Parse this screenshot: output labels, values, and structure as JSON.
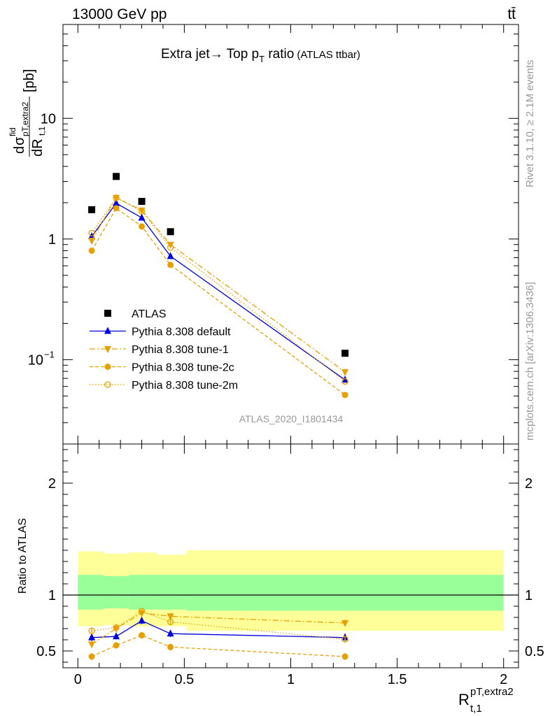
{
  "header": {
    "left": "13000 GeV pp",
    "right": "tt̄"
  },
  "side_labels": {
    "rivet": "Rivet 3.1.10, ≥ 2.1M events",
    "mcplots": "mcplots.cern.ch [arXiv:1306.3436]"
  },
  "analysis_id": "ATLAS_2020_I1801434",
  "colors": {
    "atlas": "#000000",
    "default": "#0000dd",
    "orange": "#e8a000",
    "band_inner": "#99ff99",
    "band_outer": "#ffff99"
  },
  "chart_data": [
    {
      "type": "scatter",
      "panel": "main",
      "title": "Extra jet→ Top p_T ratio",
      "title_parts": {
        "main": "Extra jet",
        "arrow": "→",
        "after": " Top p",
        "sub": "T",
        "ratio": " ratio",
        "note": "(ATLAS ttbar)"
      },
      "ylabel": "dσ^fid_{pT,extra2}/dR_{t,1} [pb]",
      "ylabel_parts": {
        "d_top": "d",
        "sigma": "σ",
        "sup": "fid",
        "sub": "pT,extra2",
        "bottom": "dR",
        "bottom_sub": "t,1",
        "unit": "[pb]"
      },
      "yscale": "log",
      "ylim": [
        0.02,
        60
      ],
      "xlim": [
        -0.07,
        2.07
      ],
      "y_ticks": [
        {
          "value": 0.1,
          "label": "10",
          "sup": "−1"
        },
        {
          "value": 1,
          "label": "1"
        },
        {
          "value": 10,
          "label": "10"
        }
      ],
      "legend_position": "lower-left",
      "x": [
        0.065,
        0.18,
        0.3,
        0.435,
        1.255
      ],
      "series": [
        {
          "name": "ATLAS",
          "marker": "square",
          "line": "none",
          "values": [
            1.75,
            3.3,
            2.05,
            1.15,
            0.113
          ]
        },
        {
          "name": "Pythia 8.308 default",
          "marker": "triangle-up",
          "line": "solid",
          "values": [
            1.05,
            1.98,
            1.5,
            0.72,
            0.068
          ]
        },
        {
          "name": "Pythia 8.308 tune-1",
          "marker": "triangle-down",
          "line": "dashdot",
          "values": [
            0.97,
            2.2,
            1.73,
            0.9,
            0.079
          ]
        },
        {
          "name": "Pythia 8.308 tune-2c",
          "marker": "circle",
          "line": "dashed",
          "values": [
            0.8,
            1.8,
            1.27,
            0.61,
            0.051
          ]
        },
        {
          "name": "Pythia 8.308 tune-2m",
          "marker": "circle-open",
          "line": "dotted",
          "values": [
            1.12,
            2.2,
            1.7,
            0.85,
            0.066
          ]
        }
      ]
    },
    {
      "type": "scatter",
      "panel": "ratio",
      "ylabel": "Ratio to ATLAS",
      "xlabel": "R^{pT,extra2}_{t,1}",
      "xlabel_parts": {
        "main": "R",
        "sup": "pT,extra2",
        "sub": "t,1"
      },
      "ylim": [
        0.35,
        2.35
      ],
      "xlim": [
        -0.07,
        2.07
      ],
      "y_ticks": [
        0.5,
        1,
        2
      ],
      "y_tick_labels": [
        "0.5",
        "1",
        "2"
      ],
      "x_ticks": [
        0,
        0.5,
        1,
        1.5,
        2
      ],
      "x_tick_labels": [
        "0",
        "0.5",
        "1",
        "1.5",
        "2"
      ],
      "bins": [
        [
          0.0,
          0.12
        ],
        [
          0.12,
          0.24
        ],
        [
          0.24,
          0.37
        ],
        [
          0.37,
          0.51
        ],
        [
          0.51,
          2.0
        ]
      ],
      "band_inner": [
        [
          0.87,
          1.18
        ],
        [
          0.88,
          1.17
        ],
        [
          0.87,
          1.18
        ],
        [
          0.87,
          1.18
        ],
        [
          0.86,
          1.18
        ]
      ],
      "band_outer": [
        [
          0.72,
          1.39
        ],
        [
          0.73,
          1.37
        ],
        [
          0.72,
          1.38
        ],
        [
          0.72,
          1.36
        ],
        [
          0.68,
          1.4
        ]
      ],
      "x": [
        0.065,
        0.18,
        0.3,
        0.435,
        1.255
      ],
      "series": [
        {
          "name": "Pythia 8.308 default",
          "values": [
            0.62,
            0.63,
            0.77,
            0.655,
            0.62
          ],
          "errors": [
            0.03,
            0.025,
            0.03,
            0.03,
            0.035
          ]
        },
        {
          "name": "Pythia 8.308 tune-1",
          "values": [
            0.56,
            0.7,
            0.84,
            0.81,
            0.75
          ],
          "errors": [
            0.03,
            0.025,
            0.03,
            0.03,
            0.03
          ]
        },
        {
          "name": "Pythia 8.308 tune-2c",
          "values": [
            0.45,
            0.55,
            0.64,
            0.535,
            0.45
          ],
          "errors": [
            0.03,
            0.025,
            0.03,
            0.03,
            0.03
          ]
        },
        {
          "name": "Pythia 8.308 tune-2m",
          "values": [
            0.68,
            0.71,
            0.855,
            0.76,
            0.605
          ],
          "errors": [
            0.03,
            0.025,
            0.03,
            0.03,
            0.03
          ]
        }
      ]
    }
  ]
}
